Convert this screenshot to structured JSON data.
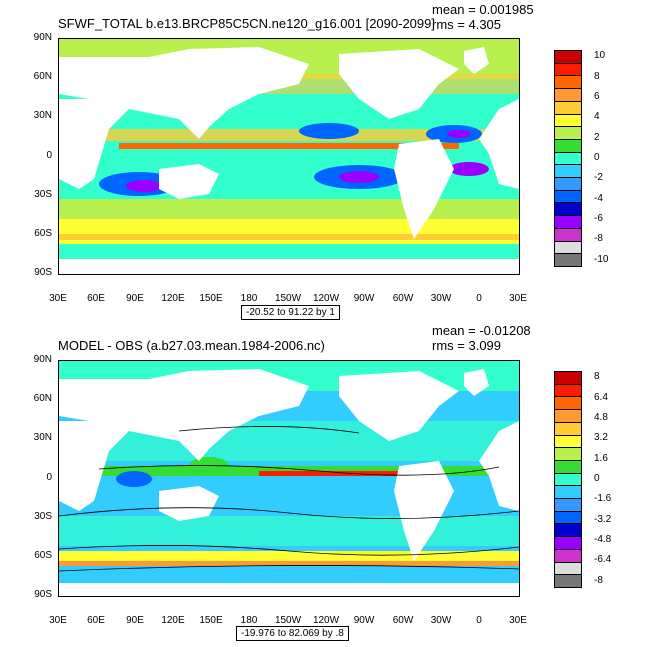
{
  "top": {
    "title": "SFWF_TOTAL b.e13.BRCP85C5CN.ne120_g16.001 [2090-2099]",
    "mean": "mean = 0.001985",
    "rms": "rms = 4.305",
    "contour_interval": "-20.52 to 91.22 by 1",
    "legend": {
      "labels": [
        "10",
        "8",
        "6",
        "4",
        "2",
        "0",
        "-2",
        "-4",
        "-6",
        "-8",
        "-10"
      ],
      "colors": [
        "#c80000",
        "#ff1a00",
        "#ff6600",
        "#ff9933",
        "#ffcc33",
        "#ffff33",
        "#b8f050",
        "#33dd33",
        "#33ffcc",
        "#33ccff",
        "#3399ff",
        "#0066ff",
        "#0000cc",
        "#9900ff",
        "#cc33cc",
        "#dddddd",
        "#777777"
      ]
    }
  },
  "bottom": {
    "title": "MODEL - OBS (a.b27.03.mean.1984-2006.nc)",
    "mean": "mean = -0.01208",
    "rms": "rms = 3.099",
    "contour_interval": "-19.976 to 82.069 by .8",
    "legend": {
      "labels": [
        "8",
        "6.4",
        "4.8",
        "3.2",
        "1.6",
        "0",
        "-1.6",
        "-3.2",
        "-4.8",
        "-6.4",
        "-8"
      ],
      "colors": [
        "#c80000",
        "#ff1a00",
        "#ff6600",
        "#ff9933",
        "#ffcc33",
        "#ffff33",
        "#b8f050",
        "#33dd33",
        "#33ffcc",
        "#33ccff",
        "#3399ff",
        "#0066ff",
        "#0000cc",
        "#9900ff",
        "#cc33cc",
        "#dddddd",
        "#777777"
      ]
    }
  },
  "axes": {
    "lat_labels": [
      "90N",
      "60N",
      "30N",
      "0",
      "30S",
      "60S",
      "90S"
    ],
    "lon_labels": [
      "30E",
      "60E",
      "90E",
      "120E",
      "150E",
      "180",
      "150W",
      "120W",
      "90W",
      "60W",
      "30W",
      "0",
      "30E"
    ]
  },
  "colors": {
    "land": "#ffffff",
    "ocean_base": "#33ffcc"
  }
}
